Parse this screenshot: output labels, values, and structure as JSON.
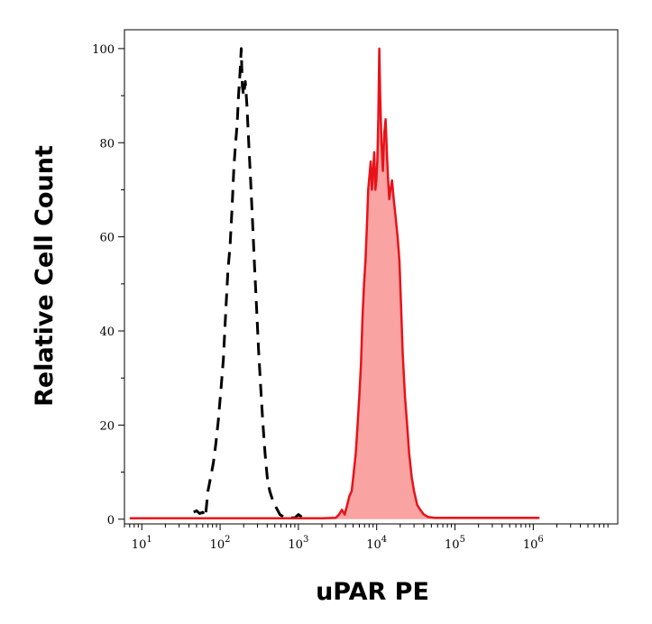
{
  "chart_data": {
    "type": "area",
    "xlabel": "uPAR PE",
    "ylabel": "Relative Cell Count",
    "x_scale": "log",
    "xlim": [
      6,
      12000000
    ],
    "ylim": [
      -1,
      104
    ],
    "x_ticks": [
      {
        "base": "10",
        "exp": "1",
        "value": 10
      },
      {
        "base": "10",
        "exp": "2",
        "value": 100
      },
      {
        "base": "10",
        "exp": "3",
        "value": 1000
      },
      {
        "base": "10",
        "exp": "4",
        "value": 10000
      },
      {
        "base": "10",
        "exp": "5",
        "value": 100000
      },
      {
        "base": "10",
        "exp": "6",
        "value": 1000000
      }
    ],
    "y_ticks": [
      0,
      20,
      40,
      60,
      80,
      100
    ],
    "grid": false,
    "colors": {
      "stained_line": "#e8121a",
      "stained_fill": "#f9a3a3",
      "control_line": "#000000"
    },
    "series": [
      {
        "style": "dashed",
        "color": "#000000",
        "points": [
          [
            46,
            1.5
          ],
          [
            50,
            1.8
          ],
          [
            55,
            1.2
          ],
          [
            60,
            1.5
          ],
          [
            65,
            0.5
          ],
          [
            70,
            6
          ],
          [
            76,
            9
          ],
          [
            82,
            12
          ],
          [
            88,
            16
          ],
          [
            95,
            21
          ],
          [
            103,
            28
          ],
          [
            110,
            34
          ],
          [
            118,
            44
          ],
          [
            126,
            53
          ],
          [
            134,
            58
          ],
          [
            142,
            66
          ],
          [
            150,
            75
          ],
          [
            158,
            80
          ],
          [
            165,
            84
          ],
          [
            172,
            90
          ],
          [
            180,
            95
          ],
          [
            186,
            100
          ],
          [
            192,
            92
          ],
          [
            200,
            90
          ],
          [
            210,
            93
          ],
          [
            220,
            88
          ],
          [
            232,
            80
          ],
          [
            245,
            72
          ],
          [
            260,
            63
          ],
          [
            275,
            54
          ],
          [
            292,
            45
          ],
          [
            310,
            36
          ],
          [
            330,
            28
          ],
          [
            350,
            21
          ],
          [
            375,
            14
          ],
          [
            400,
            9
          ],
          [
            430,
            6
          ],
          [
            470,
            4
          ],
          [
            520,
            2.5
          ],
          [
            580,
            1
          ],
          [
            650,
            0.5
          ],
          [
            750,
            0.3
          ],
          [
            900,
            0.3
          ],
          [
            1000,
            1
          ],
          [
            1100,
            0.5
          ],
          [
            1200,
            0.2
          ]
        ]
      },
      {
        "style": "filled",
        "color": "#e8121a",
        "fill": "#f9a3a3",
        "points": [
          [
            7,
            0.2
          ],
          [
            100,
            0.2
          ],
          [
            500,
            0.2
          ],
          [
            1000,
            0.2
          ],
          [
            2000,
            0.2
          ],
          [
            3000,
            0.3
          ],
          [
            3300,
            1
          ],
          [
            3600,
            2
          ],
          [
            3900,
            1
          ],
          [
            4200,
            3
          ],
          [
            4500,
            5
          ],
          [
            4800,
            6
          ],
          [
            5100,
            10
          ],
          [
            5400,
            14
          ],
          [
            5700,
            20
          ],
          [
            6000,
            26
          ],
          [
            6300,
            33
          ],
          [
            6600,
            43
          ],
          [
            6900,
            50
          ],
          [
            7200,
            55
          ],
          [
            7500,
            62
          ],
          [
            7800,
            70
          ],
          [
            8100,
            73
          ],
          [
            8400,
            76
          ],
          [
            8700,
            70
          ],
          [
            9000,
            74
          ],
          [
            9300,
            78
          ],
          [
            9600,
            70
          ],
          [
            9900,
            72
          ],
          [
            10200,
            76
          ],
          [
            10500,
            85
          ],
          [
            10800,
            100
          ],
          [
            11100,
            90
          ],
          [
            11500,
            80
          ],
          [
            12000,
            74
          ],
          [
            12500,
            82
          ],
          [
            13000,
            85
          ],
          [
            13500,
            78
          ],
          [
            14000,
            72
          ],
          [
            14500,
            68
          ],
          [
            15000,
            70
          ],
          [
            15700,
            72
          ],
          [
            16500,
            68
          ],
          [
            17500,
            64
          ],
          [
            18500,
            60
          ],
          [
            19500,
            55
          ],
          [
            20500,
            45
          ],
          [
            21500,
            35
          ],
          [
            23000,
            26
          ],
          [
            24500,
            20
          ],
          [
            26000,
            14
          ],
          [
            28000,
            9
          ],
          [
            30000,
            6
          ],
          [
            33000,
            3
          ],
          [
            36000,
            2
          ],
          [
            40000,
            1
          ],
          [
            45000,
            0.5
          ],
          [
            55000,
            0.3
          ],
          [
            80000,
            0.3
          ],
          [
            150000,
            0.3
          ],
          [
            300000,
            0.3
          ],
          [
            600000,
            0.3
          ],
          [
            1000000,
            0.3
          ],
          [
            1200000,
            0.3
          ]
        ]
      }
    ]
  }
}
